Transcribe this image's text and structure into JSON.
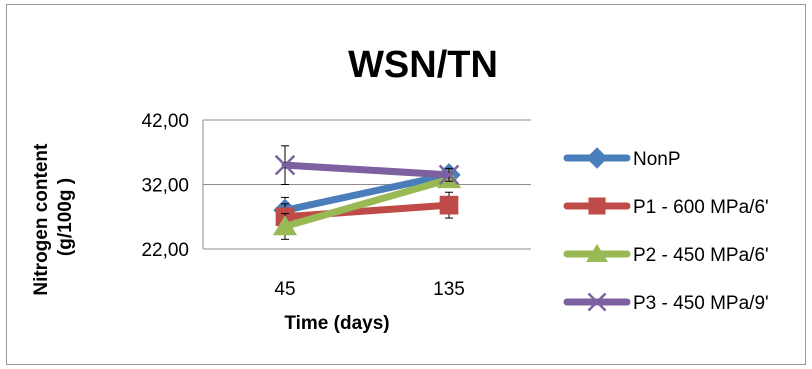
{
  "chart_data": {
    "type": "line",
    "title": "WSN/TN",
    "xlabel": "Time (days)",
    "ylabel": "Nitrogen content (g/100g )",
    "categories": [
      "45",
      "135"
    ],
    "y_ticks": [
      "22,00",
      "32,00",
      "42,00"
    ],
    "ylim": [
      22,
      42
    ],
    "grid": "horizontal",
    "legend_position": "right",
    "series": [
      {
        "name": "NonP",
        "values": [
          28.0,
          33.5
        ],
        "errors": [
          2.0,
          1.0
        ],
        "color": "#4a7ebb",
        "marker": "diamond"
      },
      {
        "name": "P1 - 600 MPa/6'",
        "values": [
          27.0,
          28.8
        ],
        "errors": [
          2.0,
          2.0
        ],
        "color": "#be4b48",
        "marker": "square"
      },
      {
        "name": "P2 - 450 MPa/6'",
        "values": [
          25.5,
          32.8
        ],
        "errors": [
          2.0,
          1.0
        ],
        "color": "#98b954",
        "marker": "triangle"
      },
      {
        "name": "P3 - 450 MPa/9'",
        "values": [
          35.0,
          33.5
        ],
        "errors": [
          3.0,
          1.0
        ],
        "color": "#7d60a0",
        "marker": "x"
      }
    ]
  }
}
